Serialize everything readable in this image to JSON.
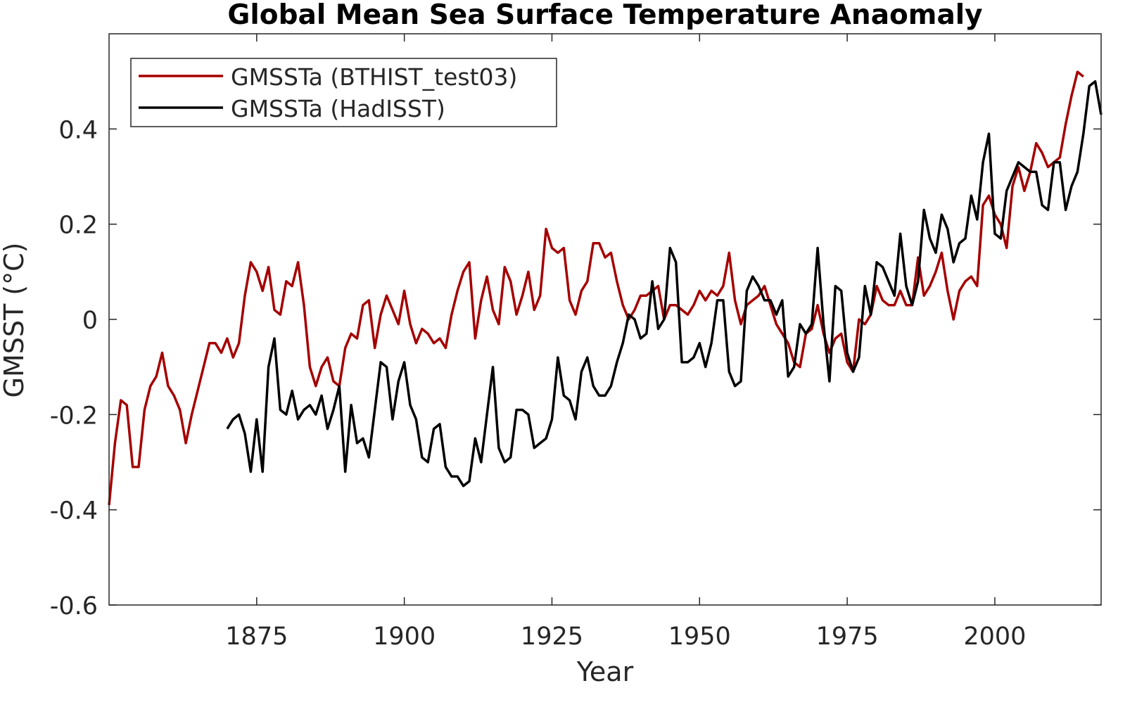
{
  "chart_data": {
    "type": "line",
    "title": "Global Mean Sea Surface Temperature Anaomaly",
    "xlabel": "Year",
    "ylabel": "GMSST (°C)",
    "xlim": [
      1850,
      2018
    ],
    "ylim": [
      -0.6,
      0.6
    ],
    "xticks": [
      1875,
      1900,
      1925,
      1950,
      1975,
      2000
    ],
    "yticks": [
      -0.6,
      -0.4,
      -0.2,
      0,
      0.2,
      0.4
    ],
    "ytick_labels": [
      "-0.6",
      "-0.4",
      "-0.2",
      "0",
      "0.2",
      "0.4"
    ],
    "grid": false,
    "legend": {
      "position": "top-left"
    },
    "series": [
      {
        "name": "GMSSTa (BTHIST_test03)",
        "color": "#a50000",
        "x": [
          1850,
          1851,
          1852,
          1853,
          1854,
          1855,
          1856,
          1857,
          1858,
          1859,
          1860,
          1861,
          1862,
          1863,
          1864,
          1865,
          1866,
          1867,
          1868,
          1869,
          1870,
          1871,
          1872,
          1873,
          1874,
          1875,
          1876,
          1877,
          1878,
          1879,
          1880,
          1881,
          1882,
          1883,
          1884,
          1885,
          1886,
          1887,
          1888,
          1889,
          1890,
          1891,
          1892,
          1893,
          1894,
          1895,
          1896,
          1897,
          1898,
          1899,
          1900,
          1901,
          1902,
          1903,
          1904,
          1905,
          1906,
          1907,
          1908,
          1909,
          1910,
          1911,
          1912,
          1913,
          1914,
          1915,
          1916,
          1917,
          1918,
          1919,
          1920,
          1921,
          1922,
          1923,
          1924,
          1925,
          1926,
          1927,
          1928,
          1929,
          1930,
          1931,
          1932,
          1933,
          1934,
          1935,
          1936,
          1937,
          1938,
          1939,
          1940,
          1941,
          1942,
          1943,
          1944,
          1945,
          1946,
          1947,
          1948,
          1949,
          1950,
          1951,
          1952,
          1953,
          1954,
          1955,
          1956,
          1957,
          1958,
          1959,
          1960,
          1961,
          1962,
          1963,
          1964,
          1965,
          1966,
          1967,
          1968,
          1969,
          1970,
          1971,
          1972,
          1973,
          1974,
          1975,
          1976,
          1977,
          1978,
          1979,
          1980,
          1981,
          1982,
          1983,
          1984,
          1985,
          1986,
          1987,
          1988,
          1989,
          1990,
          1991,
          1992,
          1993,
          1994,
          1995,
          1996,
          1997,
          1998,
          1999,
          2000,
          2001,
          2002,
          2003,
          2004,
          2005,
          2006,
          2007,
          2008,
          2009,
          2010,
          2011,
          2012,
          2013,
          2014,
          2015
        ],
        "y": [
          -0.39,
          -0.26,
          -0.17,
          -0.18,
          -0.31,
          -0.31,
          -0.19,
          -0.14,
          -0.12,
          -0.07,
          -0.14,
          -0.16,
          -0.19,
          -0.26,
          -0.2,
          -0.15,
          -0.1,
          -0.05,
          -0.05,
          -0.07,
          -0.04,
          -0.08,
          -0.05,
          0.05,
          0.12,
          0.1,
          0.06,
          0.11,
          0.02,
          0.01,
          0.08,
          0.07,
          0.12,
          0.03,
          -0.1,
          -0.14,
          -0.1,
          -0.08,
          -0.13,
          -0.14,
          -0.06,
          -0.03,
          -0.04,
          0.03,
          0.04,
          -0.06,
          0.01,
          0.05,
          0.02,
          -0.01,
          0.06,
          -0.01,
          -0.05,
          -0.02,
          -0.03,
          -0.05,
          -0.04,
          -0.06,
          0.01,
          0.06,
          0.1,
          0.12,
          -0.04,
          0.04,
          0.09,
          0.02,
          -0.01,
          0.11,
          0.08,
          0.01,
          0.05,
          0.1,
          0.02,
          0.05,
          0.19,
          0.15,
          0.14,
          0.15,
          0.04,
          0.01,
          0.06,
          0.08,
          0.16,
          0.16,
          0.13,
          0.14,
          0.08,
          0.03,
          0.0,
          0.02,
          0.05,
          0.05,
          0.06,
          0.07,
          0.0,
          0.03,
          0.03,
          0.02,
          0.01,
          0.03,
          0.06,
          0.04,
          0.06,
          0.05,
          0.07,
          0.14,
          0.04,
          -0.01,
          0.03,
          0.04,
          0.05,
          0.07,
          0.03,
          -0.01,
          -0.03,
          -0.05,
          -0.09,
          -0.1,
          -0.03,
          -0.02,
          0.03,
          -0.03,
          -0.07,
          -0.04,
          -0.03,
          -0.09,
          -0.11,
          0.0,
          -0.01,
          0.01,
          0.07,
          0.04,
          0.03,
          0.03,
          0.06,
          0.03,
          0.03,
          0.13,
          0.05,
          0.07,
          0.1,
          0.14,
          0.06,
          0.0,
          0.06,
          0.08,
          0.09,
          0.07,
          0.24,
          0.26,
          0.22,
          0.2,
          0.15,
          0.28,
          0.32,
          0.27,
          0.31,
          0.37,
          0.35,
          0.32,
          0.33,
          0.34,
          0.41,
          0.47,
          0.52,
          0.51
        ]
      },
      {
        "name": "GMSSTa (HadISST)",
        "color": "#000000",
        "x": [
          1870,
          1871,
          1872,
          1873,
          1874,
          1875,
          1876,
          1877,
          1878,
          1879,
          1880,
          1881,
          1882,
          1883,
          1884,
          1885,
          1886,
          1887,
          1888,
          1889,
          1890,
          1891,
          1892,
          1893,
          1894,
          1895,
          1896,
          1897,
          1898,
          1899,
          1900,
          1901,
          1902,
          1903,
          1904,
          1905,
          1906,
          1907,
          1908,
          1909,
          1910,
          1911,
          1912,
          1913,
          1914,
          1915,
          1916,
          1917,
          1918,
          1919,
          1920,
          1921,
          1922,
          1923,
          1924,
          1925,
          1926,
          1927,
          1928,
          1929,
          1930,
          1931,
          1932,
          1933,
          1934,
          1935,
          1936,
          1937,
          1938,
          1939,
          1940,
          1941,
          1942,
          1943,
          1944,
          1945,
          1946,
          1947,
          1948,
          1949,
          1950,
          1951,
          1952,
          1953,
          1954,
          1955,
          1956,
          1957,
          1958,
          1959,
          1960,
          1961,
          1962,
          1963,
          1964,
          1965,
          1966,
          1967,
          1968,
          1969,
          1970,
          1971,
          1972,
          1973,
          1974,
          1975,
          1976,
          1977,
          1978,
          1979,
          1980,
          1981,
          1982,
          1983,
          1984,
          1985,
          1986,
          1987,
          1988,
          1989,
          1990,
          1991,
          1992,
          1993,
          1994,
          1995,
          1996,
          1997,
          1998,
          1999,
          2000,
          2001,
          2002,
          2003,
          2004,
          2005,
          2006,
          2007,
          2008,
          2009,
          2010,
          2011,
          2012,
          2013,
          2014,
          2015,
          2016,
          2017,
          2018
        ],
        "y": [
          -0.23,
          -0.21,
          -0.2,
          -0.24,
          -0.32,
          -0.21,
          -0.32,
          -0.1,
          -0.04,
          -0.19,
          -0.2,
          -0.15,
          -0.21,
          -0.19,
          -0.18,
          -0.2,
          -0.16,
          -0.23,
          -0.19,
          -0.14,
          -0.32,
          -0.18,
          -0.26,
          -0.25,
          -0.29,
          -0.19,
          -0.09,
          -0.1,
          -0.21,
          -0.13,
          -0.09,
          -0.18,
          -0.21,
          -0.29,
          -0.3,
          -0.23,
          -0.22,
          -0.31,
          -0.33,
          -0.33,
          -0.35,
          -0.34,
          -0.25,
          -0.3,
          -0.2,
          -0.1,
          -0.27,
          -0.3,
          -0.29,
          -0.19,
          -0.19,
          -0.2,
          -0.27,
          -0.26,
          -0.25,
          -0.21,
          -0.08,
          -0.16,
          -0.17,
          -0.21,
          -0.11,
          -0.08,
          -0.14,
          -0.16,
          -0.16,
          -0.14,
          -0.09,
          -0.05,
          0.01,
          0.0,
          -0.04,
          -0.03,
          0.08,
          -0.02,
          0.0,
          0.15,
          0.12,
          -0.09,
          -0.09,
          -0.08,
          -0.05,
          -0.1,
          -0.05,
          0.04,
          0.04,
          -0.11,
          -0.14,
          -0.13,
          0.06,
          0.09,
          0.07,
          0.04,
          0.04,
          0.01,
          0.04,
          -0.12,
          -0.1,
          -0.01,
          -0.03,
          -0.01,
          0.15,
          -0.01,
          -0.13,
          0.07,
          0.06,
          -0.07,
          -0.11,
          -0.08,
          0.07,
          0.01,
          0.12,
          0.11,
          0.08,
          0.05,
          0.18,
          0.07,
          0.03,
          0.08,
          0.23,
          0.17,
          0.14,
          0.22,
          0.19,
          0.12,
          0.16,
          0.17,
          0.26,
          0.21,
          0.33,
          0.39,
          0.18,
          0.17,
          0.27,
          0.3,
          0.33,
          0.32,
          0.31,
          0.31,
          0.24,
          0.23,
          0.33,
          0.33,
          0.23,
          0.28,
          0.31,
          0.39,
          0.49,
          0.5,
          0.43
        ]
      }
    ]
  }
}
